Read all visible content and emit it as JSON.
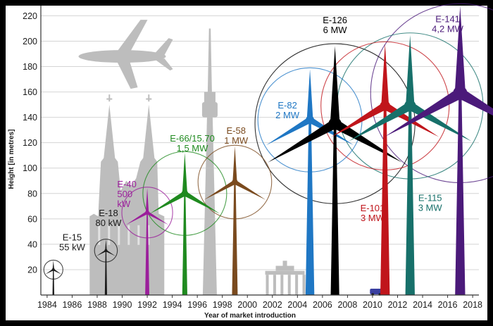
{
  "chart_data": {
    "type": "scatter",
    "title": "",
    "xlabel": "Year of market introduction",
    "ylabel": "Height [in metres]",
    "xlim": [
      1983.5,
      2018.5
    ],
    "ylim": [
      0,
      228
    ],
    "x_ticks": [
      "1984",
      "1986",
      "1988",
      "1990",
      "1992",
      "1994",
      "1996",
      "1998",
      "2000",
      "2002",
      "2004",
      "2006",
      "2008",
      "2010",
      "2012",
      "2014",
      "2016",
      "2018"
    ],
    "y_ticks": [
      "20",
      "40",
      "60",
      "80",
      "100",
      "120",
      "140",
      "160",
      "180",
      "200",
      "220"
    ],
    "grid": true,
    "turbines": [
      {
        "model": "E-15",
        "power": "55 kW",
        "year": 1984.5,
        "hub": 20,
        "diameter": 15,
        "tip": 28,
        "color": "#1a1a1a"
      },
      {
        "model": "E-18",
        "power": "80 kW",
        "year": 1988.7,
        "hub": 35,
        "diameter": 18,
        "tip": 44,
        "color": "#1a1a1a"
      },
      {
        "model": "E-40",
        "power": "500 kW",
        "year": 1992,
        "hub": 65,
        "diameter": 40,
        "tip": 85,
        "color": "#9b1f9b",
        "power_lines": [
          "500",
          "kW"
        ]
      },
      {
        "model": "E-66/15.70",
        "power": "1,5 MW",
        "year": 1995,
        "hub": 80,
        "diameter": 66,
        "tip": 113,
        "color": "#1f8a1f"
      },
      {
        "model": "E-58",
        "power": "1 MW",
        "year": 1999,
        "hub": 89,
        "diameter": 58,
        "tip": 118,
        "color": "#7a4a1e"
      },
      {
        "model": "E-82",
        "power": "2 MW",
        "year": 2005,
        "hub": 138,
        "diameter": 82,
        "tip": 179,
        "color": "#1f77c4"
      },
      {
        "model": "E-126",
        "power": "6 MW",
        "year": 2007,
        "hub": 135,
        "diameter": 126,
        "tip": 198,
        "color": "#000000"
      },
      {
        "model": "E-101",
        "power": "3 MW",
        "year": 2011,
        "hub": 149,
        "diameter": 101,
        "tip": 200,
        "color": "#c0151b"
      },
      {
        "model": "E-115",
        "power": "3 MW",
        "year": 2013,
        "hub": 149,
        "diameter": 115,
        "tip": 207,
        "color": "#17706a"
      },
      {
        "model": "E-141",
        "power": "4,2 MW",
        "year": 2017,
        "hub": 159,
        "diameter": 141,
        "tip": 229,
        "color": "#4b1a7a"
      }
    ],
    "landmarks": [
      {
        "name": "airplane",
        "x": 1990
      },
      {
        "name": "cathedral",
        "x": 1991
      },
      {
        "name": "tv-tower",
        "x": 1997
      },
      {
        "name": "brandenburg-gate",
        "x": 2003
      },
      {
        "name": "car",
        "x": 2010.3
      }
    ]
  }
}
